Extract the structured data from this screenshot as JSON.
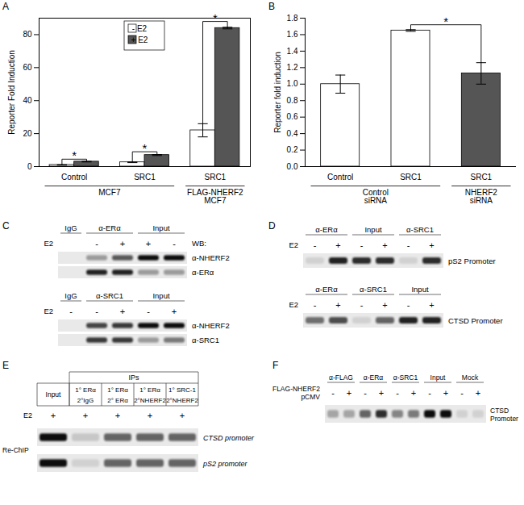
{
  "chart_data": [
    {
      "panel": "A",
      "type": "bar",
      "categories": [
        "Control",
        "SRC1",
        "SRC1"
      ],
      "group_labels": [
        "MCF7",
        "MCF7",
        "FLAG-NHERF2 MCF7"
      ],
      "series": [
        {
          "name": "- E2",
          "color": "#ffffff",
          "values": [
            1,
            2.6,
            22
          ],
          "errors": [
            0.1,
            0.2,
            4
          ]
        },
        {
          "name": "+ E2",
          "color": "#555555",
          "values": [
            3,
            7,
            84
          ],
          "errors": [
            0.2,
            0.3,
            0.5
          ]
        }
      ],
      "y_label": "Reporter Fold Induction",
      "ylim": [
        0,
        90
      ],
      "yticks": [
        0,
        20,
        40,
        60,
        80
      ],
      "legend": "top",
      "annotations": [
        {
          "text": "*",
          "from": [
            0,
            0
          ],
          "to": [
            0,
            1
          ],
          "y": 4.5
        },
        {
          "text": "*",
          "from": [
            1,
            0
          ],
          "to": [
            1,
            1
          ],
          "y": 9
        },
        {
          "text": "*",
          "from": [
            2,
            0
          ],
          "to": [
            2,
            1
          ],
          "y": 88
        }
      ]
    },
    {
      "panel": "B",
      "type": "bar",
      "categories": [
        "Control",
        "SRC1",
        "SRC1"
      ],
      "group_labels": [
        "Control siRNA",
        "Control siRNA",
        "NHERF2 siRNA"
      ],
      "values": [
        1.0,
        1.65,
        1.13
      ],
      "errors": [
        0.11,
        0.01,
        0.13
      ],
      "colors": [
        "#ffffff",
        "#ffffff",
        "#555555"
      ],
      "y_label": "Reporter fold induction",
      "ylim": [
        0,
        1.8
      ],
      "yticks": [
        {
          "value": 0,
          "label": "0.0"
        },
        0.2,
        0.4,
        0.6,
        0.8,
        {
          "value": 1,
          "label": "1.0"
        },
        1.2,
        1.4,
        1.6,
        1.8
      ],
      "annotations": [
        {
          "text": "*",
          "from": 1,
          "to": 2,
          "y": 1.72
        }
      ]
    }
  ],
  "panels": [
    {
      "panel": "C",
      "blots": [
        {
          "groups": [
            {
              "label": "IgG",
              "lanes": 1
            },
            {
              "label": "α-ERα",
              "lanes": 2
            },
            {
              "label": "Input",
              "lanes": 2
            }
          ],
          "conditions": {
            "label": "E2",
            "signs": [
              null,
              "-",
              "+",
              "+",
              "-"
            ]
          },
          "wb_label": "WB:",
          "rows": [
            {
              "label": "α-NHERF2",
              "bands": [
                0,
                0.35,
                0.65,
                1,
                1
              ]
            },
            {
              "label": "α-ERα",
              "bands": [
                0,
                0.9,
                0.9,
                0.35,
                0.35
              ]
            }
          ]
        },
        {
          "groups": [
            {
              "label": "IgG",
              "lanes": 1
            },
            {
              "label": "α-SRC1",
              "lanes": 2
            },
            {
              "label": "Input",
              "lanes": 2
            }
          ],
          "conditions": {
            "label": "E2",
            "signs": [
              "-",
              "-",
              "+",
              "-",
              "+"
            ]
          },
          "rows": [
            {
              "label": "α-NHERF2",
              "bands": [
                0,
                0.75,
                0.8,
                1,
                1
              ]
            },
            {
              "label": "α-SRC1",
              "bands": [
                0,
                0.8,
                0.8,
                0.35,
                0.5
              ]
            }
          ]
        }
      ]
    },
    {
      "panel": "D",
      "blots": [
        {
          "groups": [
            {
              "label": "α-ERα",
              "lanes": 2
            },
            {
              "label": "Input",
              "lanes": 2
            },
            {
              "label": "α-SRC1",
              "lanes": 2
            }
          ],
          "conditions": {
            "label": "E2",
            "signs": [
              "-",
              "+",
              "-",
              "+",
              "-",
              "+"
            ]
          },
          "rows": [
            {
              "label": "pS2 Promoter",
              "bands": [
                0.1,
                0.9,
                0.85,
                0.85,
                0.1,
                0.85
              ]
            }
          ]
        },
        {
          "groups": [
            {
              "label": "α-ERα",
              "lanes": 2
            },
            {
              "label": "α-SRC1",
              "lanes": 2
            },
            {
              "label": "Input",
              "lanes": 2
            }
          ],
          "conditions": {
            "label": "E2",
            "signs": [
              "-",
              "+",
              "-",
              "+",
              "-",
              "+"
            ]
          },
          "rows": [
            {
              "label": "CTSD Promoter",
              "bands": [
                0.55,
                0.7,
                0.1,
                0.6,
                0.9,
                0.9
              ]
            }
          ]
        }
      ]
    },
    {
      "panel": "E",
      "header": "IPs",
      "columns": [
        {
          "lines": [
            "Input"
          ]
        },
        {
          "lines": [
            "1° ERα",
            "2°IgG"
          ]
        },
        {
          "lines": [
            "1° ERα",
            "2° ERα"
          ]
        },
        {
          "lines": [
            "1° ERα",
            "2°NHERF2"
          ]
        },
        {
          "lines": [
            "1° SRC-1",
            "2°NHERF2"
          ]
        }
      ],
      "conditions": {
        "label": "E2",
        "signs": [
          "+",
          "+",
          "+",
          "+",
          "+"
        ]
      },
      "side_label": "Re-ChIP",
      "rows": [
        {
          "label": "CTSD promoter",
          "bands": [
            1,
            0.15,
            0.6,
            0.6,
            0.6
          ]
        },
        {
          "label": "pS2 promoter",
          "bands": [
            1,
            0.1,
            0.6,
            0.6,
            0.6
          ]
        }
      ]
    },
    {
      "panel": "F",
      "blots": [
        {
          "groups": [
            {
              "label": "α-FLAG",
              "lanes": 2
            },
            {
              "label": "α-ERα",
              "lanes": 2
            },
            {
              "label": "α-SRC1",
              "lanes": 2
            },
            {
              "label": "Input",
              "lanes": 2
            },
            {
              "label": "Mock",
              "lanes": 2
            }
          ],
          "conditions": {
            "label": "FLAG-NHERF2 pCMV",
            "signs": [
              "-",
              "+",
              "-",
              "+",
              "-",
              "+",
              "-",
              "+",
              "-",
              "+"
            ]
          },
          "rows": [
            {
              "label": "CTSD Promoter",
              "bands": [
                0.3,
                0.3,
                0.6,
                0.85,
                0.45,
                0.5,
                1,
                1,
                0.1,
                0.1
              ]
            }
          ]
        }
      ]
    }
  ]
}
